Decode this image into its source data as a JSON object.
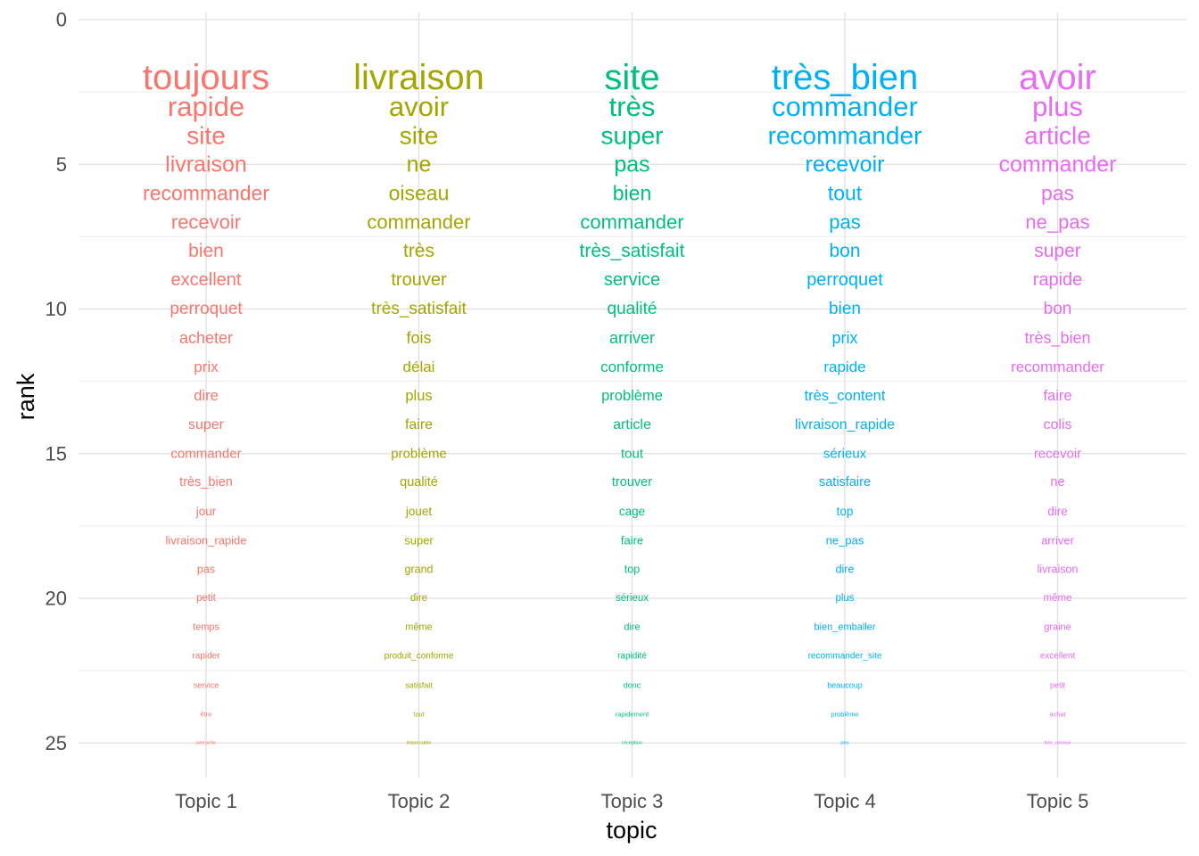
{
  "chart_data": {
    "type": "scatter",
    "xlabel": "topic",
    "ylabel": "rank",
    "y_axis_reversed": true,
    "ylim": [
      0,
      26.3
    ],
    "y_ticks": [
      "0",
      "5",
      "10",
      "15",
      "20",
      "25"
    ],
    "x_ticks": [
      "Topic 1",
      "Topic 2",
      "Topic 3",
      "Topic 4",
      "Topic 5"
    ],
    "grid": true,
    "legend": "none",
    "size_encodes": "rank (rank 2 largest, rank 25 smallest)",
    "series": [
      {
        "color": "#F8766D",
        "words": [
          "toujours",
          "rapide",
          "site",
          "livraison",
          "recommander",
          "recevoir",
          "bien",
          "excellent",
          "perroquet",
          "acheter",
          "prix",
          "dire",
          "super",
          "commander",
          "très_bien",
          "jour",
          "livraison_rapide",
          "pas",
          "petit",
          "temps",
          "rapider",
          "service",
          "être",
          "perruche"
        ]
      },
      {
        "color": "#A3A500",
        "words": [
          "livraison",
          "avoir",
          "site",
          "ne",
          "oiseau",
          "commander",
          "très",
          "trouver",
          "très_satisfait",
          "fois",
          "délai",
          "plus",
          "faire",
          "problème",
          "qualité",
          "jouet",
          "super",
          "grand",
          "dire",
          "même",
          "produit_conforme",
          "satisfait",
          "tout",
          "impeccable"
        ]
      },
      {
        "color": "#00BF7D",
        "words": [
          "site",
          "très",
          "super",
          "pas",
          "bien",
          "commander",
          "très_satisfait",
          "service",
          "qualité",
          "arriver",
          "conforme",
          "problème",
          "article",
          "tout",
          "trouver",
          "cage",
          "faire",
          "top",
          "sérieux",
          "dire",
          "rapidité",
          "donc",
          "rapidement",
          "réception"
        ]
      },
      {
        "color": "#00B0F6",
        "words": [
          "très_bien",
          "commander",
          "recommander",
          "recevoir",
          "tout",
          "pas",
          "bon",
          "perroquet",
          "bien",
          "prix",
          "rapide",
          "très_content",
          "livraison_rapide",
          "sérieux",
          "satisfaire",
          "top",
          "ne_pas",
          "dire",
          "plus",
          "bien_emballer",
          "recommander_site",
          "beaucoup",
          "problème",
          "peu"
        ]
      },
      {
        "color": "#E76BF3",
        "words": [
          "avoir",
          "plus",
          "article",
          "commander",
          "pas",
          "ne_pas",
          "super",
          "rapide",
          "bon",
          "très_bien",
          "recommander",
          "faire",
          "colis",
          "recevoir",
          "ne",
          "dire",
          "arriver",
          "livraison",
          "même",
          "graine",
          "excellent",
          "petit",
          "achat",
          "très_sérieux"
        ]
      }
    ]
  }
}
